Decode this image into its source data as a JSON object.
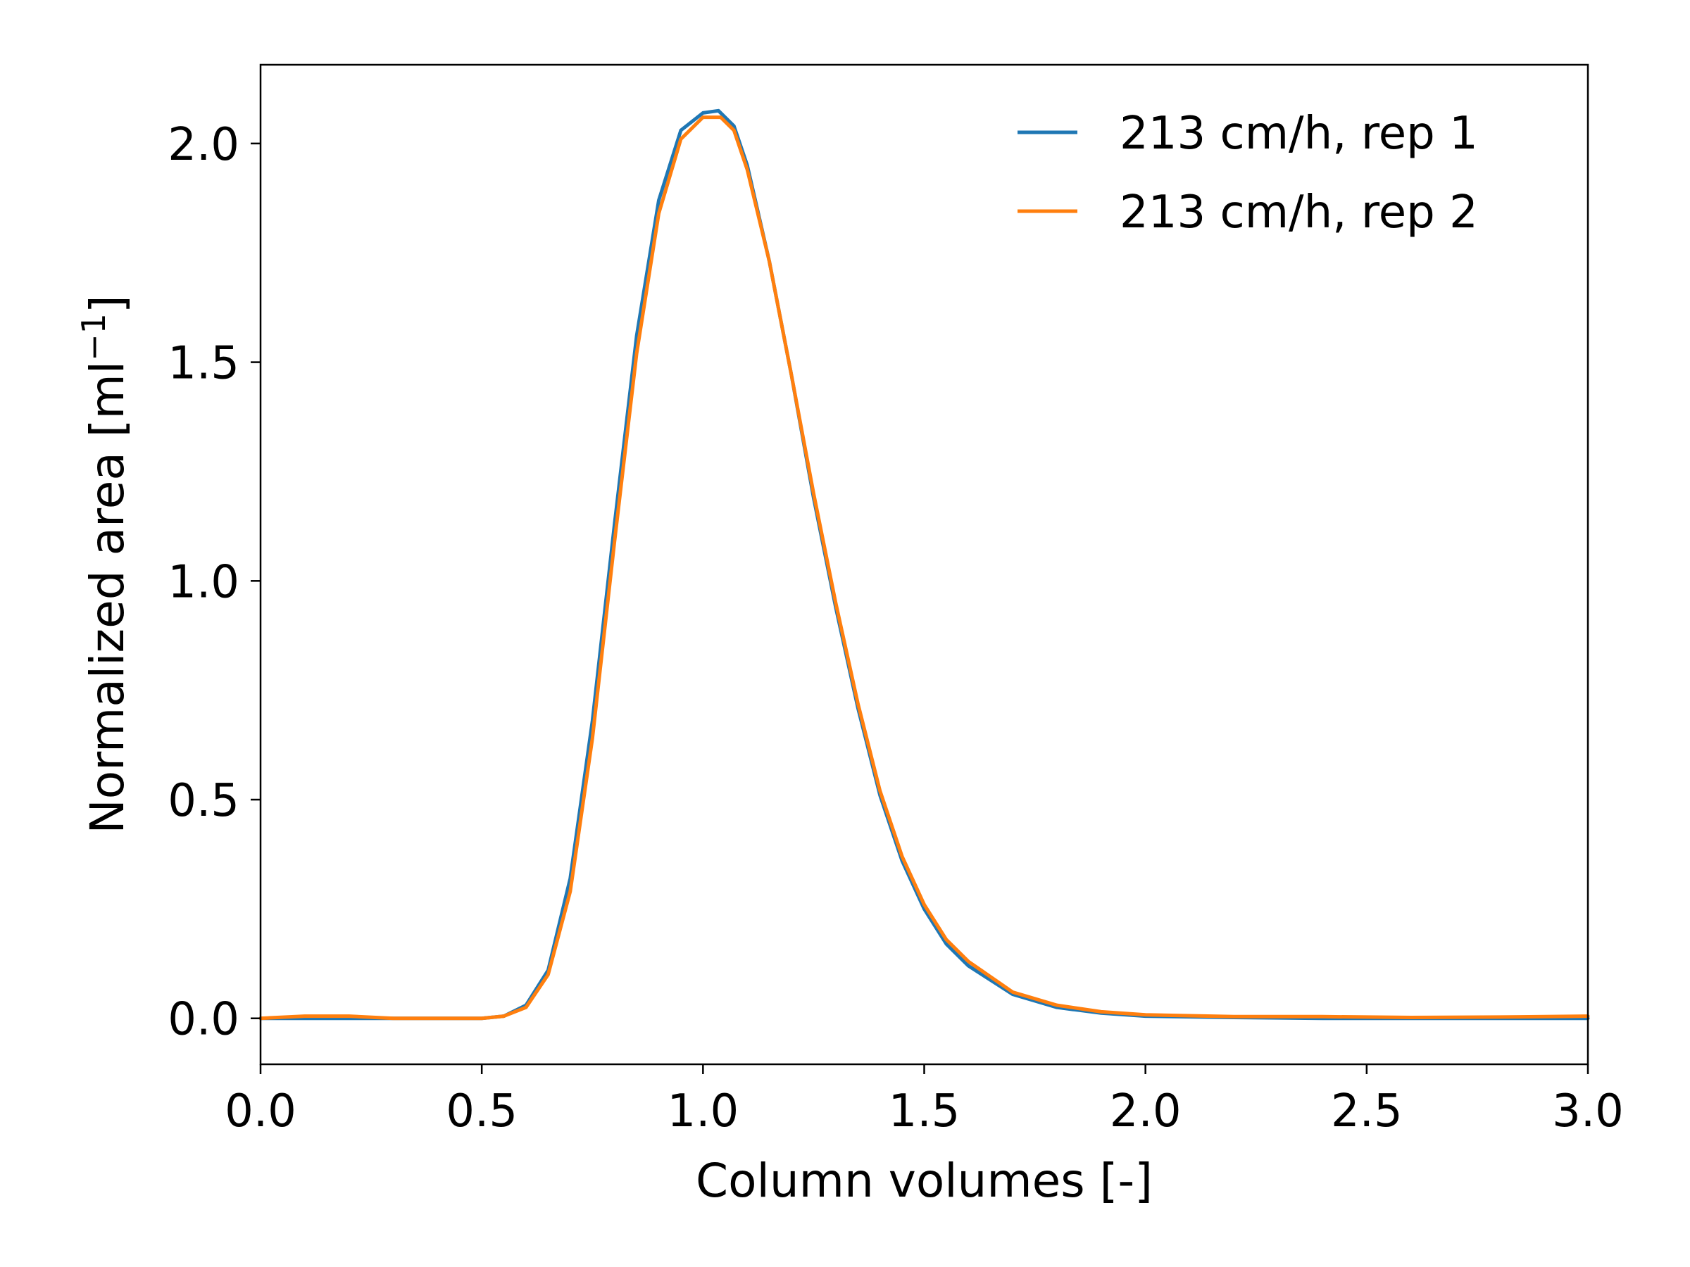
{
  "chart_data": {
    "type": "line",
    "title": "",
    "xlabel": "Column volumes [-]",
    "ylabel_main": "Normalized area [ml",
    "ylabel_sup": "−1",
    "ylabel_close": "]",
    "xlim": [
      0.0,
      3.0
    ],
    "ylim": [
      -0.105,
      2.18
    ],
    "xticks": [
      0.0,
      0.5,
      1.0,
      1.5,
      2.0,
      2.5,
      3.0
    ],
    "xtick_labels": [
      "0.0",
      "0.5",
      "1.0",
      "1.5",
      "2.0",
      "2.5",
      "3.0"
    ],
    "yticks": [
      0.0,
      0.5,
      1.0,
      1.5,
      2.0
    ],
    "ytick_labels": [
      "0.0",
      "0.5",
      "1.0",
      "1.5",
      "2.0"
    ],
    "grid": false,
    "legend_position": "top-right",
    "series": [
      {
        "name": "213 cm/h, rep 1",
        "color": "#1f77b4",
        "x": [
          0.0,
          0.1,
          0.2,
          0.3,
          0.4,
          0.5,
          0.55,
          0.6,
          0.65,
          0.7,
          0.75,
          0.8,
          0.85,
          0.9,
          0.95,
          1.0,
          1.035,
          1.07,
          1.1,
          1.15,
          1.2,
          1.25,
          1.3,
          1.35,
          1.4,
          1.45,
          1.5,
          1.55,
          1.6,
          1.7,
          1.8,
          1.9,
          2.0,
          2.2,
          2.4,
          2.6,
          2.8,
          3.0
        ],
        "y": [
          0.0,
          0.0,
          0.0,
          0.0,
          0.0,
          0.0,
          0.005,
          0.03,
          0.11,
          0.32,
          0.68,
          1.13,
          1.56,
          1.87,
          2.03,
          2.07,
          2.075,
          2.04,
          1.95,
          1.73,
          1.47,
          1.19,
          0.94,
          0.71,
          0.51,
          0.36,
          0.25,
          0.17,
          0.12,
          0.055,
          0.025,
          0.012,
          0.005,
          0.002,
          0.0,
          0.0,
          0.0,
          0.0
        ]
      },
      {
        "name": "213 cm/h, rep 2",
        "color": "#ff7f0e",
        "x": [
          0.0,
          0.1,
          0.2,
          0.3,
          0.4,
          0.5,
          0.55,
          0.6,
          0.65,
          0.7,
          0.75,
          0.8,
          0.85,
          0.9,
          0.95,
          1.0,
          1.04,
          1.07,
          1.1,
          1.15,
          1.2,
          1.25,
          1.3,
          1.35,
          1.4,
          1.45,
          1.5,
          1.55,
          1.6,
          1.7,
          1.8,
          1.9,
          2.0,
          2.2,
          2.4,
          2.6,
          2.8,
          3.0
        ],
        "y": [
          0.0,
          0.005,
          0.005,
          0.0,
          0.0,
          0.0,
          0.005,
          0.025,
          0.1,
          0.29,
          0.64,
          1.09,
          1.52,
          1.84,
          2.01,
          2.06,
          2.06,
          2.03,
          1.94,
          1.73,
          1.47,
          1.2,
          0.95,
          0.72,
          0.52,
          0.37,
          0.26,
          0.18,
          0.13,
          0.06,
          0.03,
          0.015,
          0.008,
          0.004,
          0.004,
          0.002,
          0.003,
          0.005
        ]
      }
    ]
  }
}
